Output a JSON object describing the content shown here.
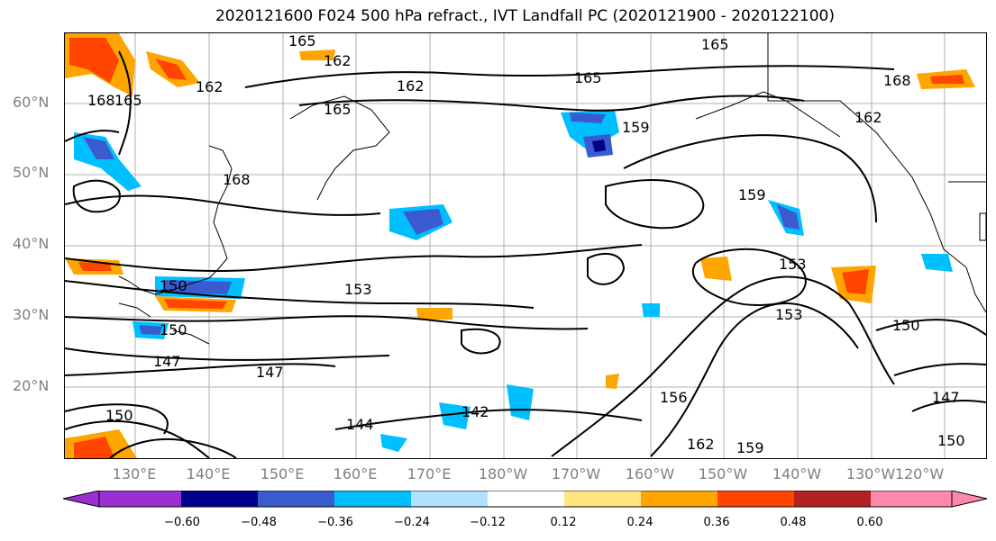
{
  "title": "2020121600 F024 500 hPa refract., IVT Landfall PC (2020121900 - 2020122100)",
  "lat_labels": [
    "60°N",
    "50°N",
    "40°N",
    "30°N",
    "20°N"
  ],
  "lon_labels": [
    "130°E",
    "140°E",
    "150°E",
    "160°E",
    "170°E",
    "180°W",
    "170°W",
    "160°W",
    "150°W",
    "140°W",
    "130°W",
    "120°W"
  ],
  "contour_labels": [
    "165",
    "162",
    "165",
    "162",
    "165",
    "162",
    "165",
    "159",
    "162",
    "168",
    "165",
    "168",
    "168",
    "159",
    "153",
    "150",
    "153",
    "150",
    "153",
    "147",
    "147",
    "144",
    "142",
    "150",
    "156",
    "162",
    "159",
    "147",
    "150",
    "150"
  ],
  "colorbar": {
    "ticks": [
      "−0.60",
      "−0.48",
      "−0.36",
      "−0.24",
      "−0.12",
      "0.12",
      "0.24",
      "0.36",
      "0.48",
      "0.60"
    ],
    "colors": [
      "#9b30d0",
      "#00008b",
      "#3a5bd0",
      "#00bfff",
      "#b0e2ff",
      "#ffffff",
      "#ffe680",
      "#ffa500",
      "#ff4500",
      "#b22222",
      "#ff88aa"
    ]
  }
}
